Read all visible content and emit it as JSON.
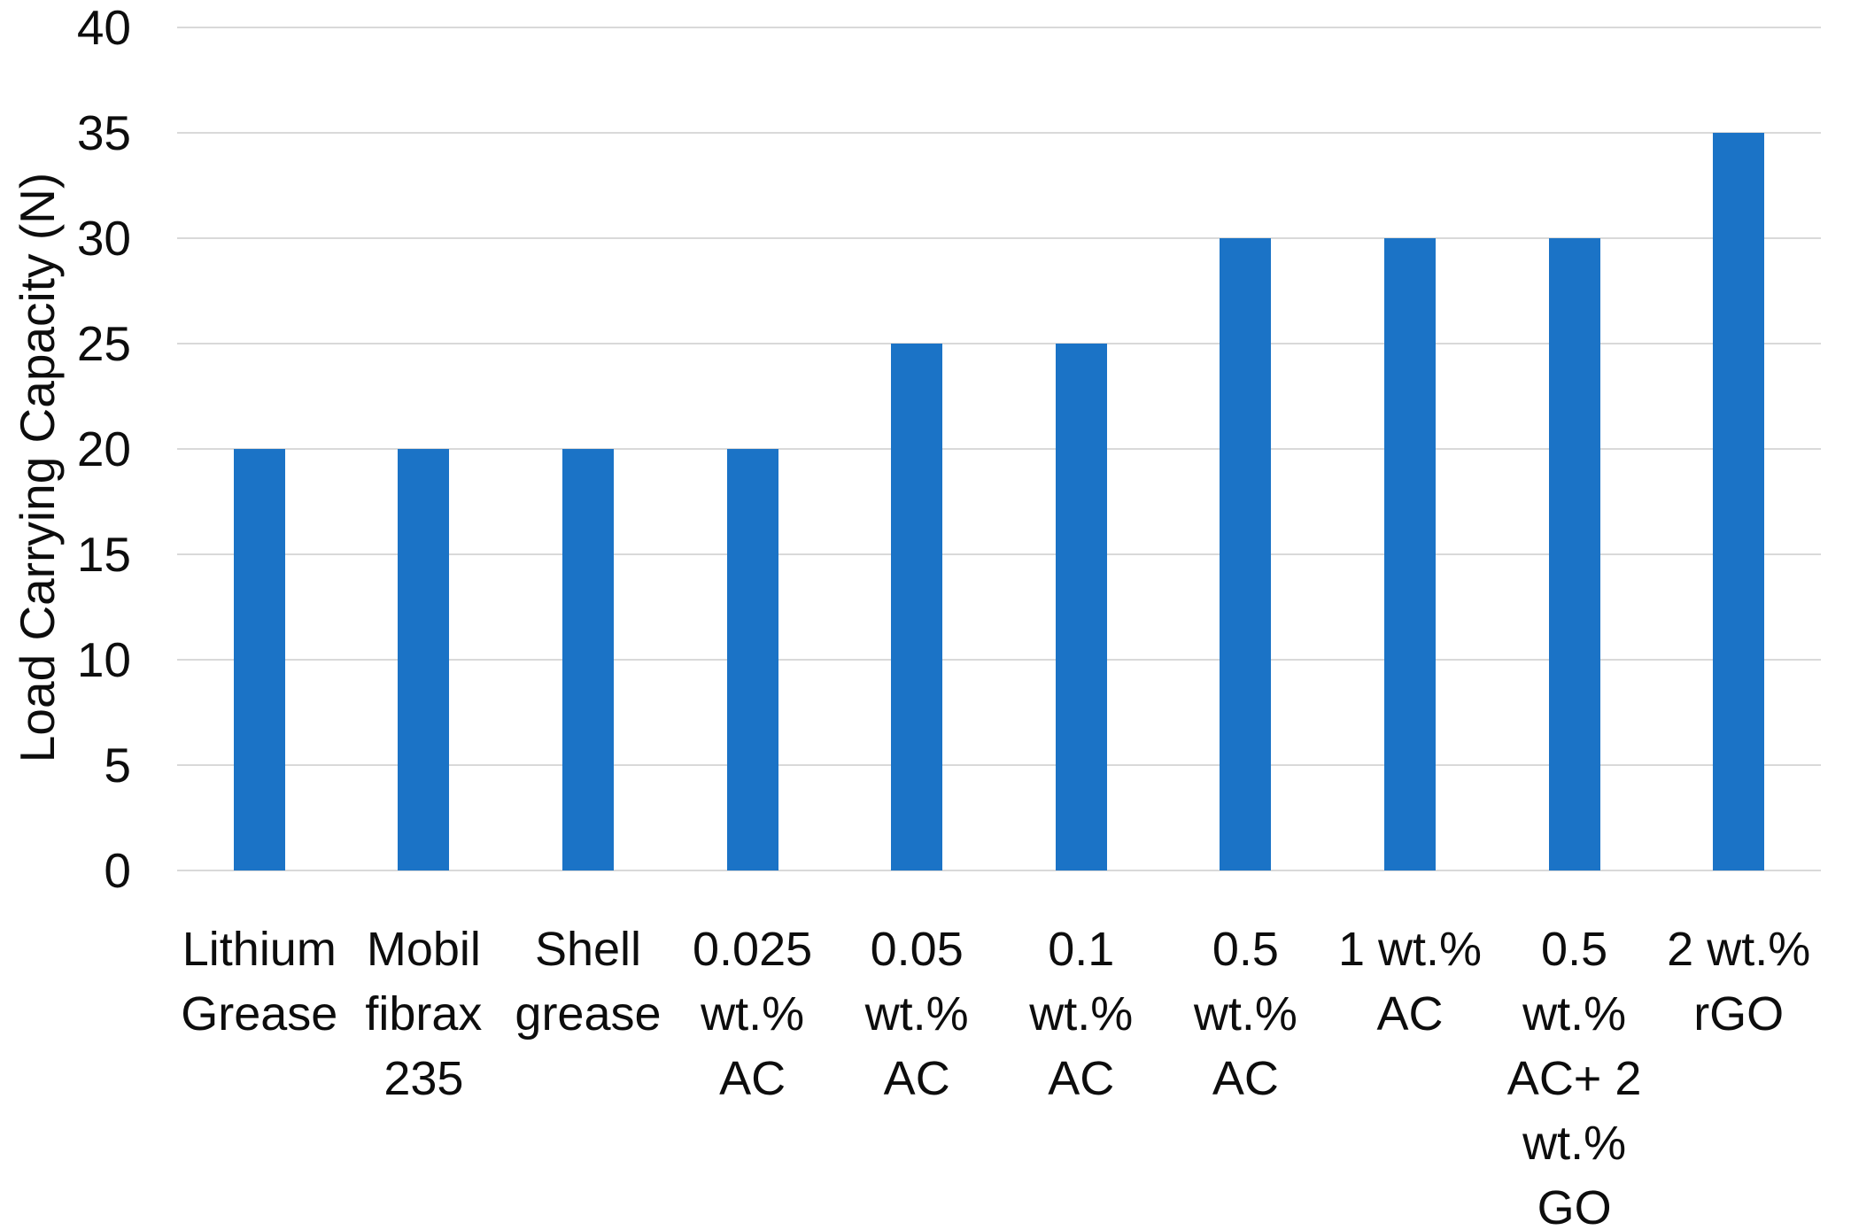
{
  "chart_data": {
    "type": "bar",
    "title": "",
    "xlabel": "",
    "ylabel": "Load Carrying Capacity (N)",
    "ylim": [
      0,
      40
    ],
    "y_ticks": [
      0,
      5,
      10,
      15,
      20,
      25,
      30,
      35,
      40
    ],
    "grid": "horizontal gridlines on",
    "legend_position": "none",
    "categories": [
      "Lithium Grease",
      "Mobil fibrax 235",
      "Shell grease",
      "0.025 wt.% AC",
      "0.05 wt.% AC",
      "0.1 wt.% AC",
      "0.5 wt.% AC",
      "1 wt.% AC",
      "0.5 wt.% AC+ 2 wt.% GO",
      "2 wt.% rGO"
    ],
    "category_display": [
      "Lithium\nGrease",
      "Mobil\nfibrax\n235",
      "Shell\ngrease",
      "0.025\nwt.%\nAC",
      "0.05\nwt.%\nAC",
      "0.1\nwt.%\nAC",
      "0.5\nwt.%\nAC",
      "1 wt.%\nAC",
      "0.5\nwt.%\nAC+ 2\nwt.%\nGO",
      "2 wt.%\nrGO"
    ],
    "values": [
      20,
      20,
      20,
      20,
      25,
      25,
      30,
      30,
      30,
      35
    ]
  },
  "colors": {
    "bar": "#1b73c6",
    "gridline": "#d9d9d9",
    "text": "#0d0d0d",
    "background": "#ffffff"
  }
}
